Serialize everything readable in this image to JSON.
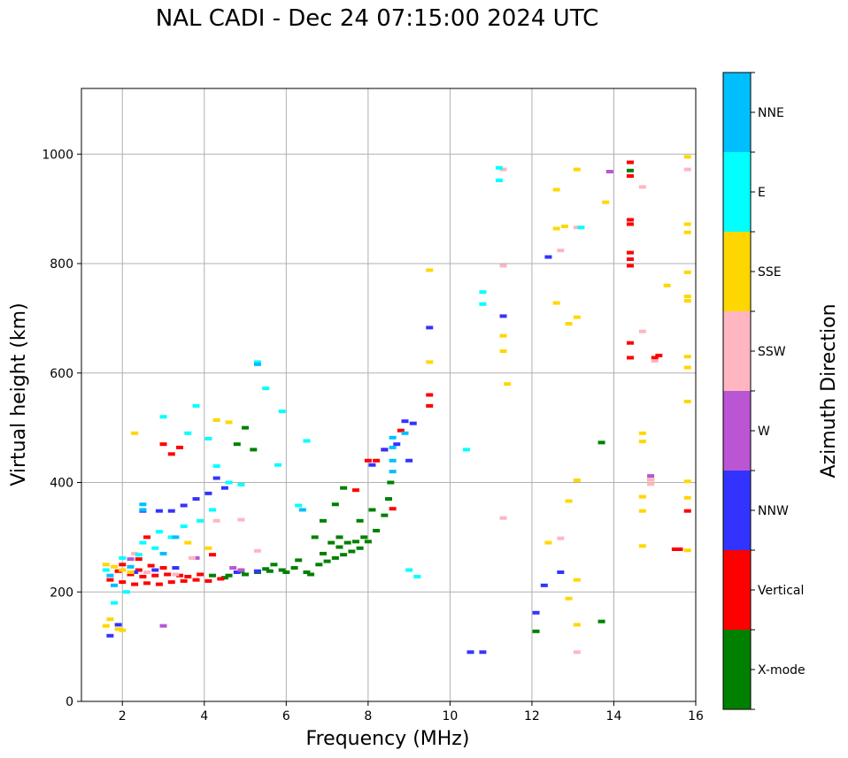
{
  "chart_data": {
    "type": "scatter",
    "title": "NAL CADI - Dec 24 07:15:00 2024 UTC",
    "xlabel": "Frequency (MHz)",
    "ylabel": "Virtual height (km)",
    "xlim": [
      1,
      16
    ],
    "ylim": [
      0,
      1120
    ],
    "xticks": [
      "2",
      "4",
      "6",
      "8",
      "10",
      "12",
      "14",
      "16"
    ],
    "yticks": [
      "0",
      "200",
      "400",
      "600",
      "800",
      "1000"
    ],
    "grid": true,
    "colorbar": {
      "label": "Azimuth Direction",
      "categories": [
        {
          "name": "NNE",
          "color": "#00bfff"
        },
        {
          "name": "E",
          "color": "#00ffff"
        },
        {
          "name": "SSE",
          "color": "#ffd700"
        },
        {
          "name": "SSW",
          "color": "#ffb6c1"
        },
        {
          "name": "W",
          "color": "#ba55d3"
        },
        {
          "name": "NNW",
          "color": "#3333ff"
        },
        {
          "name": "Vertical",
          "color": "#ff0000"
        },
        {
          "name": "X-mode",
          "color": "#008000"
        }
      ]
    },
    "series": [
      {
        "name": "X-mode",
        "points": [
          [
            4.6,
            230
          ],
          [
            5.0,
            232
          ],
          [
            5.3,
            236
          ],
          [
            5.6,
            238
          ],
          [
            5.9,
            240
          ],
          [
            6.2,
            244
          ],
          [
            6.5,
            236
          ],
          [
            6.8,
            250
          ],
          [
            7.0,
            256
          ],
          [
            7.2,
            262
          ],
          [
            7.4,
            268
          ],
          [
            7.6,
            274
          ],
          [
            7.8,
            280
          ],
          [
            8.0,
            292
          ],
          [
            8.2,
            312
          ],
          [
            8.4,
            340
          ],
          [
            8.5,
            370
          ],
          [
            8.55,
            400
          ],
          [
            5.5,
            242
          ],
          [
            6.0,
            236
          ],
          [
            6.6,
            232
          ],
          [
            7.1,
            290
          ],
          [
            7.3,
            300
          ],
          [
            7.5,
            290
          ],
          [
            7.7,
            292
          ],
          [
            7.9,
            300
          ],
          [
            6.9,
            330
          ],
          [
            7.2,
            360
          ],
          [
            7.4,
            390
          ],
          [
            6.7,
            300
          ],
          [
            4.8,
            470
          ],
          [
            5.2,
            460
          ],
          [
            5.0,
            500
          ],
          [
            4.9,
            238
          ],
          [
            5.7,
            250
          ],
          [
            6.3,
            258
          ],
          [
            6.9,
            270
          ],
          [
            7.3,
            282
          ],
          [
            7.8,
            330
          ],
          [
            8.1,
            350
          ],
          [
            4.2,
            230
          ],
          [
            4.5,
            226
          ],
          [
            12.1,
            128
          ],
          [
            13.7,
            146
          ],
          [
            13.7,
            473
          ],
          [
            14.4,
            970
          ],
          [
            14.9,
            405
          ]
        ]
      },
      {
        "name": "Vertical",
        "points": [
          [
            1.7,
            222
          ],
          [
            2.0,
            218
          ],
          [
            2.3,
            214
          ],
          [
            2.6,
            216
          ],
          [
            2.9,
            214
          ],
          [
            3.2,
            218
          ],
          [
            3.5,
            220
          ],
          [
            3.8,
            222
          ],
          [
            4.1,
            220
          ],
          [
            4.4,
            224
          ],
          [
            2.2,
            232
          ],
          [
            2.5,
            228
          ],
          [
            2.8,
            230
          ],
          [
            3.1,
            232
          ],
          [
            3.4,
            230
          ],
          [
            2.0,
            250
          ],
          [
            2.7,
            248
          ],
          [
            3.0,
            244
          ],
          [
            1.9,
            238
          ],
          [
            2.4,
            240
          ],
          [
            3.6,
            228
          ],
          [
            3.9,
            232
          ],
          [
            4.2,
            268
          ],
          [
            3.0,
            470
          ],
          [
            3.2,
            452
          ],
          [
            3.4,
            464
          ],
          [
            2.6,
            300
          ],
          [
            2.4,
            260
          ],
          [
            8.0,
            440
          ],
          [
            8.2,
            440
          ],
          [
            8.4,
            460
          ],
          [
            8.8,
            495
          ],
          [
            9.5,
            540
          ],
          [
            9.5,
            560
          ],
          [
            8.6,
            352
          ],
          [
            7.7,
            386
          ],
          [
            14.4,
            985
          ],
          [
            14.4,
            960
          ],
          [
            14.4,
            880
          ],
          [
            14.4,
            872
          ],
          [
            14.4,
            820
          ],
          [
            14.4,
            808
          ],
          [
            14.4,
            796
          ],
          [
            14.4,
            655
          ],
          [
            14.4,
            628
          ],
          [
            15.0,
            628
          ],
          [
            15.1,
            632
          ],
          [
            15.5,
            278
          ],
          [
            15.6,
            278
          ],
          [
            15.8,
            348
          ]
        ]
      },
      {
        "name": "NNW",
        "points": [
          [
            2.5,
            348
          ],
          [
            2.9,
            348
          ],
          [
            3.2,
            348
          ],
          [
            3.5,
            358
          ],
          [
            1.7,
            120
          ],
          [
            1.9,
            140
          ],
          [
            2.3,
            236
          ],
          [
            2.8,
            240
          ],
          [
            3.3,
            244
          ],
          [
            4.3,
            408
          ],
          [
            4.5,
            390
          ],
          [
            4.1,
            380
          ],
          [
            3.8,
            370
          ],
          [
            8.1,
            432
          ],
          [
            8.4,
            460
          ],
          [
            8.7,
            470
          ],
          [
            9.0,
            440
          ],
          [
            9.1,
            508
          ],
          [
            9.5,
            683
          ],
          [
            8.9,
            512
          ],
          [
            12.4,
            812
          ],
          [
            12.7,
            236
          ],
          [
            12.3,
            212
          ],
          [
            12.1,
            162
          ],
          [
            11.3,
            704
          ],
          [
            10.5,
            90
          ],
          [
            10.8,
            90
          ],
          [
            4.8,
            236
          ],
          [
            5.3,
            238
          ]
        ]
      },
      {
        "name": "W",
        "points": [
          [
            13.9,
            968
          ],
          [
            14.9,
            412
          ],
          [
            4.7,
            244
          ],
          [
            3.0,
            138
          ],
          [
            2.2,
            260
          ],
          [
            3.8,
            262
          ],
          [
            4.9,
            240
          ]
        ]
      },
      {
        "name": "SSW",
        "points": [
          [
            14.9,
            397
          ],
          [
            14.9,
            405
          ],
          [
            15.0,
            622
          ],
          [
            12.7,
            298
          ],
          [
            12.7,
            824
          ],
          [
            13.1,
            866
          ],
          [
            13.1,
            90
          ],
          [
            11.3,
            972
          ],
          [
            11.3,
            335
          ],
          [
            11.3,
            796
          ],
          [
            14.7,
            940
          ],
          [
            14.7,
            676
          ],
          [
            15.8,
            972
          ],
          [
            2.0,
            240
          ],
          [
            2.6,
            236
          ],
          [
            3.3,
            232
          ],
          [
            3.7,
            262
          ],
          [
            2.3,
            270
          ],
          [
            4.3,
            330
          ],
          [
            4.9,
            332
          ],
          [
            5.3,
            275
          ]
        ]
      },
      {
        "name": "SSE",
        "points": [
          [
            1.6,
            250
          ],
          [
            1.8,
            246
          ],
          [
            2.0,
            240
          ],
          [
            2.2,
            236
          ],
          [
            1.9,
            132
          ],
          [
            2.0,
            130
          ],
          [
            1.7,
            150
          ],
          [
            1.6,
            138
          ],
          [
            2.3,
            490
          ],
          [
            4.3,
            514
          ],
          [
            4.6,
            510
          ],
          [
            9.5,
            620
          ],
          [
            9.5,
            788
          ],
          [
            11.3,
            668
          ],
          [
            11.3,
            640
          ],
          [
            11.4,
            580
          ],
          [
            12.4,
            290
          ],
          [
            12.6,
            935
          ],
          [
            12.6,
            864
          ],
          [
            12.6,
            728
          ],
          [
            12.8,
            868
          ],
          [
            12.9,
            690
          ],
          [
            12.9,
            188
          ],
          [
            12.9,
            366
          ],
          [
            13.1,
            972
          ],
          [
            13.1,
            702
          ],
          [
            13.1,
            404
          ],
          [
            13.1,
            222
          ],
          [
            13.1,
            140
          ],
          [
            13.8,
            912
          ],
          [
            14.7,
            490
          ],
          [
            14.7,
            475
          ],
          [
            14.7,
            374
          ],
          [
            14.7,
            348
          ],
          [
            14.7,
            284
          ],
          [
            15.3,
            760
          ],
          [
            15.8,
            995
          ],
          [
            15.8,
            872
          ],
          [
            15.8,
            857
          ],
          [
            15.8,
            784
          ],
          [
            15.8,
            740
          ],
          [
            15.8,
            732
          ],
          [
            15.8,
            630
          ],
          [
            15.8,
            610
          ],
          [
            15.8,
            548
          ],
          [
            15.8,
            402
          ],
          [
            15.8,
            372
          ],
          [
            15.8,
            276
          ],
          [
            3.6,
            290
          ],
          [
            4.1,
            280
          ]
        ]
      },
      {
        "name": "E",
        "points": [
          [
            1.6,
            240
          ],
          [
            2.0,
            262
          ],
          [
            2.4,
            268
          ],
          [
            2.8,
            280
          ],
          [
            3.2,
            300
          ],
          [
            3.5,
            320
          ],
          [
            3.9,
            330
          ],
          [
            4.2,
            350
          ],
          [
            3.0,
            520
          ],
          [
            3.6,
            490
          ],
          [
            4.1,
            480
          ],
          [
            4.3,
            430
          ],
          [
            4.6,
            400
          ],
          [
            5.3,
            620
          ],
          [
            5.5,
            572
          ],
          [
            5.9,
            530
          ],
          [
            6.3,
            358
          ],
          [
            6.5,
            476
          ],
          [
            5.8,
            432
          ],
          [
            4.9,
            396
          ],
          [
            9.0,
            240
          ],
          [
            9.2,
            228
          ],
          [
            10.4,
            460
          ],
          [
            10.8,
            748
          ],
          [
            10.8,
            726
          ],
          [
            11.2,
            952
          ],
          [
            11.2,
            975
          ],
          [
            13.2,
            866
          ],
          [
            2.5,
            290
          ],
          [
            2.9,
            310
          ],
          [
            1.8,
            180
          ],
          [
            2.1,
            200
          ],
          [
            3.8,
            540
          ]
        ]
      },
      {
        "name": "NNE",
        "points": [
          [
            2.5,
            360
          ],
          [
            2.5,
            350
          ],
          [
            8.6,
            482
          ],
          [
            8.6,
            464
          ],
          [
            8.6,
            440
          ],
          [
            8.6,
            420
          ],
          [
            8.9,
            490
          ],
          [
            5.3,
            616
          ],
          [
            1.7,
            230
          ],
          [
            1.8,
            212
          ],
          [
            3.3,
            300
          ],
          [
            3.0,
            270
          ],
          [
            2.2,
            246
          ],
          [
            6.4,
            350
          ]
        ]
      }
    ]
  }
}
